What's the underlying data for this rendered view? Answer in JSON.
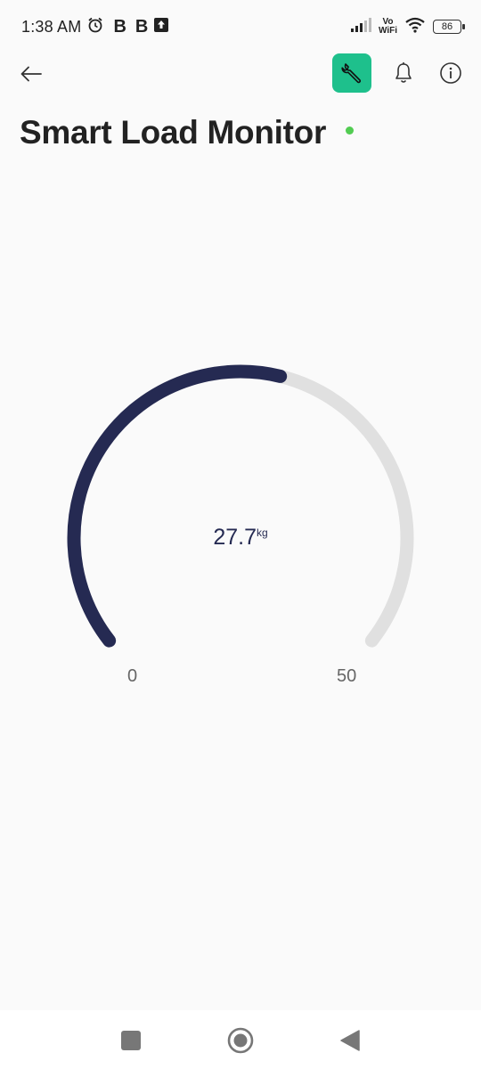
{
  "status_bar": {
    "time": "1:38 AM",
    "b1": "B",
    "b2": "B",
    "vowifi_top": "Vo",
    "vowifi_bottom": "WiFi",
    "battery": "86"
  },
  "header": {
    "back_icon": "arrow-left-icon",
    "settings_icon": "wrench-icon",
    "settings_color": "#1ec08c",
    "notifications_icon": "bell-icon",
    "info_icon": "info-icon"
  },
  "page": {
    "title": "Smart Load Monitor",
    "status_color": "#52cc52"
  },
  "gauge": {
    "value": "27.7",
    "value_number": 27.7,
    "unit": "kg",
    "min_label": "0",
    "max_label": "50",
    "min": 0,
    "max": 50,
    "fill_color": "#252a52",
    "track_color": "#e0e0e0"
  },
  "nav": {
    "recents_icon": "square-icon",
    "home_icon": "circle-icon",
    "back_icon": "triangle-back-icon"
  }
}
